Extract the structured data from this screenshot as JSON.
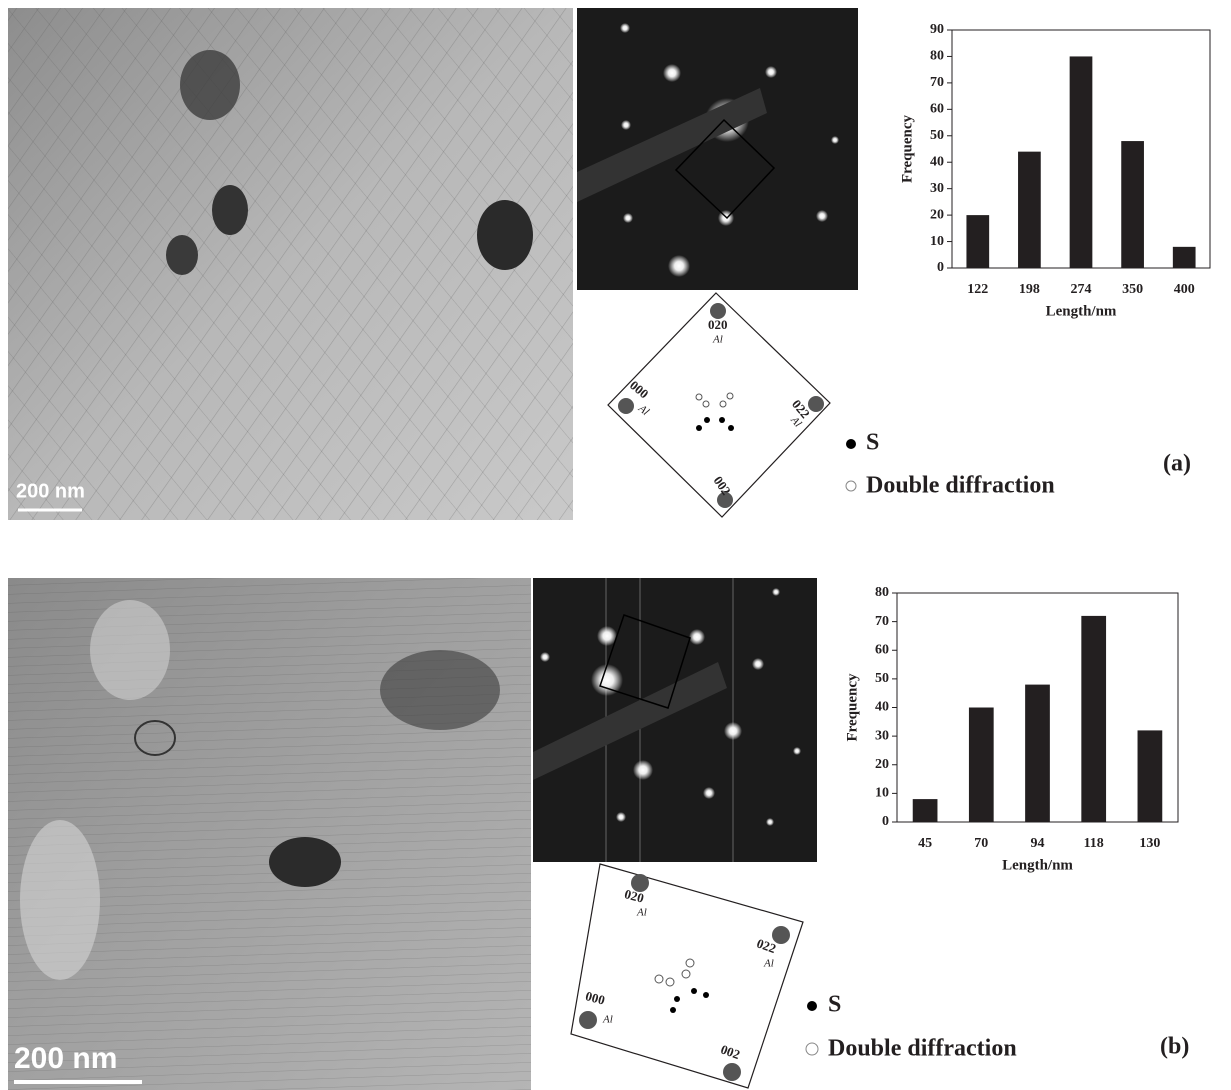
{
  "chart_data": [
    {
      "type": "bar",
      "categories": [
        "122",
        "198",
        "274",
        "350",
        "400"
      ],
      "values": [
        20,
        44,
        80,
        48,
        8
      ],
      "color": "#231f20",
      "x_label": "Length/nm",
      "y_label": "Frequency",
      "ylim": [
        0,
        90
      ],
      "yticks": [
        0,
        10,
        20,
        30,
        40,
        50,
        60,
        70,
        80,
        90
      ]
    },
    {
      "type": "bar",
      "categories": [
        "45",
        "70",
        "94",
        "118",
        "130"
      ],
      "values": [
        8,
        40,
        48,
        72,
        32
      ],
      "color": "#231f20",
      "x_label": "Length/nm",
      "y_label": "Frequency",
      "ylim": [
        0,
        80
      ],
      "yticks": [
        0,
        10,
        20,
        30,
        40,
        50,
        60,
        70,
        80
      ]
    }
  ],
  "panels": [
    {
      "label": "(a)",
      "scale_bar": "200 nm",
      "spots": [
        {
          "hkl": "020",
          "phase": "Al"
        },
        {
          "hkl": "000",
          "phase": "Al"
        },
        {
          "hkl": "022",
          "phase": "Al"
        },
        {
          "hkl": "002"
        }
      ],
      "legend": [
        "S",
        "Double diffraction"
      ]
    },
    {
      "label": "(b)",
      "scale_bar": "200 nm",
      "spots": [
        {
          "hkl": "020",
          "phase": "Al"
        },
        {
          "hkl": "022",
          "phase": "Al"
        },
        {
          "hkl": "000",
          "phase": "Al"
        },
        {
          "hkl": "002"
        }
      ],
      "legend": [
        "S",
        "Double diffraction"
      ]
    }
  ]
}
